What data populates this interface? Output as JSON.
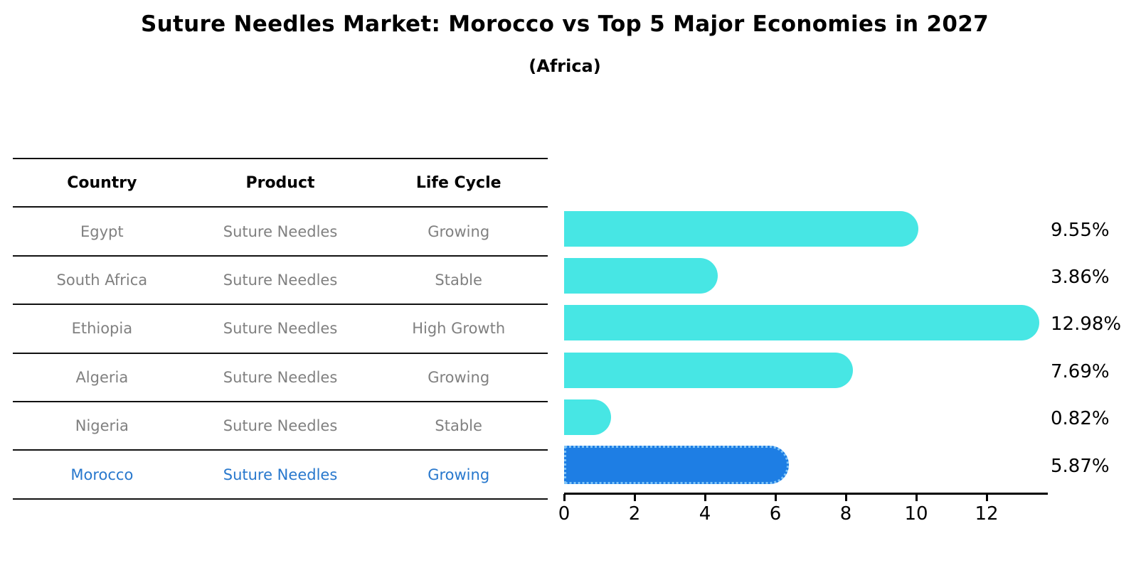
{
  "title": "Suture Needles Market: Morocco vs Top 5 Major Economies in 2027",
  "subtitle": "(Africa)",
  "table": {
    "headers": [
      "Country",
      "Product",
      "Life Cycle"
    ],
    "rows": [
      {
        "country": "Egypt",
        "product": "Suture Needles",
        "life_cycle": "Growing",
        "highlighted": false
      },
      {
        "country": "South Africa",
        "product": "Suture Needles",
        "life_cycle": "Stable",
        "highlighted": false
      },
      {
        "country": "Ethiopia",
        "product": "Suture Needles",
        "life_cycle": "High Growth",
        "highlighted": false
      },
      {
        "country": "Algeria",
        "product": "Suture Needles",
        "life_cycle": "Growing",
        "highlighted": false
      },
      {
        "country": "Nigeria",
        "product": "Suture Needles",
        "life_cycle": "Stable",
        "highlighted": false
      },
      {
        "country": "Morocco",
        "product": "Suture Needles",
        "life_cycle": "Growing",
        "highlighted": true
      }
    ]
  },
  "chart_data": {
    "type": "bar",
    "orientation": "horizontal",
    "categories": [
      "Egypt",
      "South Africa",
      "Ethiopia",
      "Algeria",
      "Nigeria",
      "Morocco"
    ],
    "values": [
      9.55,
      3.86,
      12.98,
      7.69,
      0.82,
      5.87
    ],
    "value_labels": [
      "9.55%",
      "3.86%",
      "12.98%",
      "7.69%",
      "0.82%",
      "5.87%"
    ],
    "xticks": [
      "0",
      "2",
      "4",
      "6",
      "8",
      "10",
      "12"
    ],
    "xlim": [
      0,
      13.7
    ],
    "grid": false,
    "legend": "none",
    "highlight_category": "Morocco"
  },
  "colors": {
    "bar": "#47E6E4",
    "highlight_bar": "#1E7EE4",
    "highlight_border": "#7FC4F7",
    "row_text": "#808080",
    "header_text": "#000000",
    "highlight_text": "#2878CD",
    "table_line": "#111111",
    "axis": "#000000",
    "background": "#FFFFFF"
  }
}
